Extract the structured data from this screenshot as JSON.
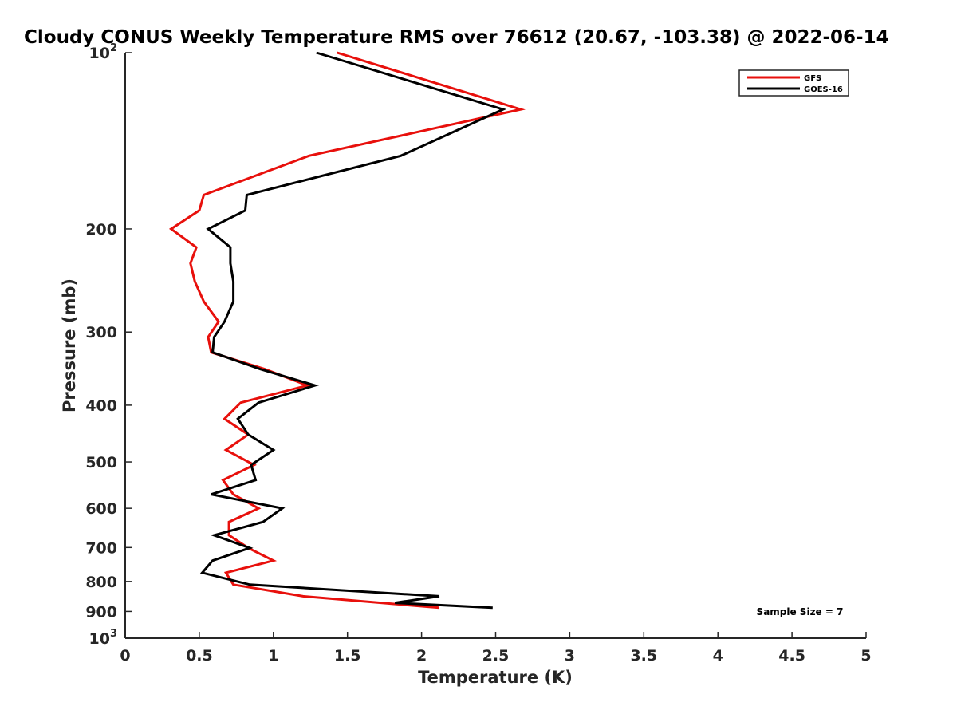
{
  "chart_data": {
    "type": "line",
    "title": "Cloudy CONUS Weekly Temperature RMS over 76612 (20.67, -103.38) @ 2022-06-14",
    "xlabel": "Temperature (K)",
    "ylabel": "Pressure (mb)",
    "xlim": [
      0,
      5
    ],
    "ylim": [
      100,
      1000
    ],
    "yscale": "log",
    "yreversed": true,
    "x_ticks": [
      {
        "value": 0,
        "label": "0"
      },
      {
        "value": 0.5,
        "label": "0.5"
      },
      {
        "value": 1,
        "label": "1"
      },
      {
        "value": 1.5,
        "label": "1.5"
      },
      {
        "value": 2,
        "label": "2"
      },
      {
        "value": 2.5,
        "label": "2.5"
      },
      {
        "value": 3,
        "label": "3"
      },
      {
        "value": 3.5,
        "label": "3.5"
      },
      {
        "value": 4,
        "label": "4"
      },
      {
        "value": 4.5,
        "label": "4.5"
      },
      {
        "value": 5,
        "label": "5"
      }
    ],
    "y_ticks": [
      {
        "value": 100,
        "base": "10",
        "exp": "2"
      },
      {
        "value": 200,
        "label": "200"
      },
      {
        "value": 300,
        "label": "300"
      },
      {
        "value": 400,
        "label": "400"
      },
      {
        "value": 500,
        "label": "500"
      },
      {
        "value": 600,
        "label": "600"
      },
      {
        "value": 700,
        "label": "700"
      },
      {
        "value": 800,
        "label": "800"
      },
      {
        "value": 900,
        "label": "900"
      },
      {
        "value": 1000,
        "base": "10",
        "exp": "3"
      }
    ],
    "series": [
      {
        "name": "GFS",
        "color": "#e8100c",
        "points": [
          [
            1.43,
            100
          ],
          [
            2.67,
            125
          ],
          [
            1.24,
            150
          ],
          [
            0.53,
            175
          ],
          [
            0.5,
            186
          ],
          [
            0.31,
            200
          ],
          [
            0.48,
            215
          ],
          [
            0.44,
            229
          ],
          [
            0.47,
            246
          ],
          [
            0.53,
            266
          ],
          [
            0.63,
            288
          ],
          [
            0.56,
            306
          ],
          [
            0.58,
            325
          ],
          [
            0.94,
            347
          ],
          [
            1.23,
            370
          ],
          [
            0.78,
            396
          ],
          [
            0.67,
            422
          ],
          [
            0.83,
            449
          ],
          [
            0.68,
            477
          ],
          [
            0.87,
            506
          ],
          [
            0.66,
            537
          ],
          [
            0.73,
            568
          ],
          [
            0.9,
            600
          ],
          [
            0.7,
            633
          ],
          [
            0.7,
            667
          ],
          [
            0.83,
            701
          ],
          [
            1.0,
            737
          ],
          [
            0.68,
            773
          ],
          [
            0.73,
            810
          ],
          [
            1.2,
            848
          ],
          [
            2.12,
            887
          ]
        ]
      },
      {
        "name": "GOES-16",
        "color": "#000000",
        "points": [
          [
            1.29,
            100
          ],
          [
            2.55,
            125
          ],
          [
            1.86,
            150
          ],
          [
            0.82,
            175
          ],
          [
            0.81,
            186
          ],
          [
            0.56,
            200
          ],
          [
            0.71,
            215
          ],
          [
            0.71,
            229
          ],
          [
            0.73,
            246
          ],
          [
            0.73,
            266
          ],
          [
            0.67,
            288
          ],
          [
            0.6,
            306
          ],
          [
            0.59,
            325
          ],
          [
            0.91,
            347
          ],
          [
            1.28,
            370
          ],
          [
            0.9,
            396
          ],
          [
            0.76,
            422
          ],
          [
            0.83,
            449
          ],
          [
            1.0,
            477
          ],
          [
            0.85,
            506
          ],
          [
            0.88,
            537
          ],
          [
            0.58,
            568
          ],
          [
            1.06,
            600
          ],
          [
            0.93,
            633
          ],
          [
            0.6,
            667
          ],
          [
            0.84,
            701
          ],
          [
            0.59,
            737
          ],
          [
            0.52,
            773
          ],
          [
            0.84,
            810
          ],
          [
            2.12,
            848
          ],
          [
            1.82,
            870
          ],
          [
            2.48,
            887
          ]
        ]
      }
    ],
    "legend_position": "top-right",
    "annotation": "Sample Size = 7"
  }
}
